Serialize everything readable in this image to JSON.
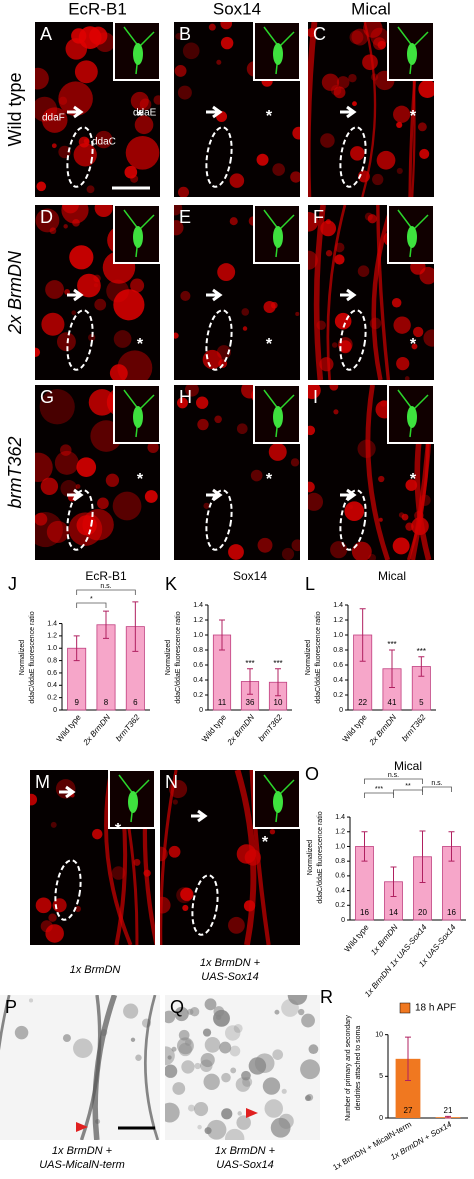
{
  "figure": {
    "columns": [
      "EcR-B1",
      "Sox14",
      "Mical"
    ],
    "rows": [
      "Wild type",
      "2x BrmDN",
      "brmT362"
    ],
    "panels": [
      "A",
      "B",
      "C",
      "D",
      "E",
      "F",
      "G",
      "H",
      "I",
      "M",
      "N",
      "P",
      "Q"
    ],
    "asterisk": "*",
    "cell_labels": [
      "ddaF",
      "ddaE",
      "ddaC"
    ],
    "caption_m": [
      "1x BrmDN"
    ],
    "caption_n": [
      "1x BrmDN +",
      "UAS-Sox14"
    ],
    "caption_p": [
      "1x BrmDN +",
      "UAS-MicalN-term"
    ],
    "caption_q": [
      "1x BrmDN +",
      "UAS-Sox14"
    ]
  },
  "chart_data": [
    {
      "type": "bar",
      "panel": "J",
      "title": "EcR-B1",
      "ylabel": [
        "Normalized",
        "ddaC/ddaE fluorescence ratio"
      ],
      "categories": [
        "Wild type",
        "2x BrmDN",
        "brmT362"
      ],
      "values": [
        1.0,
        1.38,
        1.35
      ],
      "errors": [
        0.2,
        0.22,
        0.4
      ],
      "n": [
        9,
        8,
        6
      ],
      "color": "#f6a6c9",
      "ylim": [
        0,
        1.7
      ],
      "yticks": [
        0,
        0.2,
        0.4,
        0.6,
        0.8,
        {
          "value": 1,
          "label": "1.0"
        },
        1.2,
        1.4
      ],
      "brackets": [
        {
          "label": "*",
          "between": [
            0,
            1
          ]
        },
        {
          "label": "n.s.",
          "between": [
            0,
            2
          ]
        }
      ]
    },
    {
      "type": "bar",
      "panel": "K",
      "title": "Sox14",
      "ylabel": [
        "Normalized",
        "ddaC/ddaE fluorescence ratio"
      ],
      "categories": [
        "Wild type",
        "2x BrmDN",
        "brmT362"
      ],
      "values": [
        1.0,
        0.38,
        0.37
      ],
      "errors": [
        0.2,
        0.17,
        0.18
      ],
      "n": [
        11,
        36,
        10
      ],
      "stars": [
        null,
        "***",
        "***"
      ],
      "color": "#f6a6c9",
      "ylim": [
        0,
        1.4
      ],
      "yticks": [
        0,
        0.2,
        0.4,
        0.6,
        0.8,
        {
          "value": 1,
          "label": "1.0"
        },
        1.2,
        1.4
      ]
    },
    {
      "type": "bar",
      "panel": "L",
      "title": "Mical",
      "ylabel": [
        "Normalized",
        "ddaC/ddaE fluorescence ratio"
      ],
      "categories": [
        "Wild type",
        "2x BrmDN",
        "brmT362"
      ],
      "values": [
        1.0,
        0.55,
        0.58
      ],
      "errors": [
        0.35,
        0.25,
        0.13
      ],
      "n": [
        22,
        41,
        5
      ],
      "stars": [
        null,
        "***",
        "***"
      ],
      "color": "#f6a6c9",
      "ylim": [
        0,
        1.4
      ],
      "yticks": [
        0,
        0.2,
        0.4,
        0.6,
        0.8,
        {
          "value": 1,
          "label": "1.0"
        },
        1.2,
        1.4
      ]
    },
    {
      "type": "bar",
      "panel": "O",
      "title": "Mical",
      "ylabel": [
        "Normalized",
        "ddaC/ddaE fluorescence ratio"
      ],
      "categories": [
        "Wild type",
        "1x BrmDN",
        "1x BrmDN 1x UAS-Sox14",
        "1x UAS-Sox14"
      ],
      "values": [
        1.0,
        0.52,
        0.86,
        1.0
      ],
      "errors": [
        0.2,
        0.2,
        0.35,
        0.2
      ],
      "n": [
        16,
        14,
        20,
        16
      ],
      "color": "#f6a6c9",
      "ylim": [
        0,
        1.7
      ],
      "yticks": [
        0,
        0.2,
        0.4,
        0.6,
        0.8,
        {
          "value": 1,
          "label": "1.0"
        },
        1.2,
        1.4
      ],
      "brackets": [
        {
          "label": "***",
          "between": [
            0,
            1
          ]
        },
        {
          "label": "**",
          "between": [
            1,
            2
          ]
        },
        {
          "label": "n.s.",
          "between": [
            2,
            3
          ]
        },
        {
          "label": "n.s.",
          "between": [
            0,
            2
          ]
        }
      ]
    },
    {
      "type": "bar",
      "panel": "R",
      "ylabel": [
        "Number of primary and secondary",
        "dendrites attached to soma"
      ],
      "categories": [
        "1x BrmDN + MicalN-term",
        "1x BrmDN + Sox14"
      ],
      "series": [
        {
          "name": "18 h APF",
          "color": "#f07820",
          "values": [
            7.1,
            0.1
          ],
          "errors": [
            2.6,
            0.1
          ],
          "n": [
            27,
            21
          ]
        }
      ],
      "ylim": [
        0,
        12
      ],
      "yticks": [
        0,
        5,
        10
      ]
    }
  ]
}
